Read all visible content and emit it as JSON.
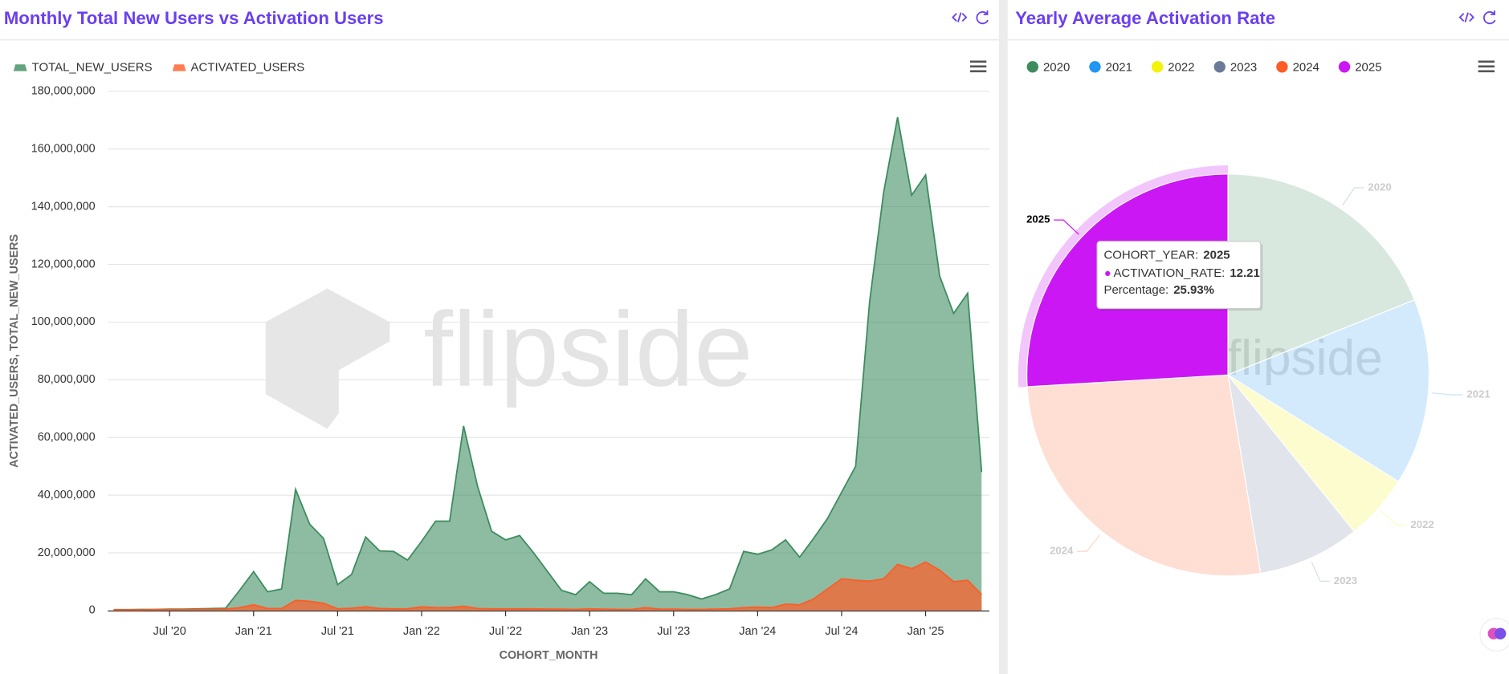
{
  "watermark": "flipside",
  "chart_data": [
    {
      "type": "area",
      "title": "Monthly Total New Users vs Activation Users",
      "xlabel": "COHORT_MONTH",
      "ylabel": "ACTIVATED_USERS, TOTAL_NEW_USERS",
      "legend": "top-left",
      "grid": true,
      "x": [
        "2020-03",
        "2020-04",
        "2020-05",
        "2020-06",
        "2020-07",
        "2020-08",
        "2020-09",
        "2020-10",
        "2020-11",
        "2020-12",
        "2021-01",
        "2021-02",
        "2021-03",
        "2021-04",
        "2021-05",
        "2021-06",
        "2021-07",
        "2021-08",
        "2021-09",
        "2021-10",
        "2021-11",
        "2021-12",
        "2022-01",
        "2022-02",
        "2022-03",
        "2022-04",
        "2022-05",
        "2022-06",
        "2022-07",
        "2022-08",
        "2022-09",
        "2022-10",
        "2022-11",
        "2022-12",
        "2023-01",
        "2023-02",
        "2023-03",
        "2023-04",
        "2023-05",
        "2023-06",
        "2023-07",
        "2023-08",
        "2023-09",
        "2023-10",
        "2023-11",
        "2023-12",
        "2024-01",
        "2024-02",
        "2024-03",
        "2024-04",
        "2024-05",
        "2024-06",
        "2024-07",
        "2024-08",
        "2024-09",
        "2024-10",
        "2024-11",
        "2024-12",
        "2025-01",
        "2025-02",
        "2025-03",
        "2025-04",
        "2025-05"
      ],
      "xlim": [
        "2020-03",
        "2025-05"
      ],
      "xticks": [
        {
          "value": "2020-07",
          "label": "Jul '20"
        },
        {
          "value": "2021-01",
          "label": "Jan '21"
        },
        {
          "value": "2021-07",
          "label": "Jul '21"
        },
        {
          "value": "2022-01",
          "label": "Jan '22"
        },
        {
          "value": "2022-07",
          "label": "Jul '22"
        },
        {
          "value": "2023-01",
          "label": "Jan '23"
        },
        {
          "value": "2023-07",
          "label": "Jul '23"
        },
        {
          "value": "2024-01",
          "label": "Jan '24"
        },
        {
          "value": "2024-07",
          "label": "Jul '24"
        },
        {
          "value": "2025-01",
          "label": "Jan '25"
        }
      ],
      "ylim": [
        0,
        180000000
      ],
      "yticks": [
        0,
        {
          "value": 20000000,
          "label": "20,000,000"
        },
        {
          "value": 40000000,
          "label": "40,000,000"
        },
        {
          "value": 60000000,
          "label": "60,000,000"
        },
        {
          "value": 80000000,
          "label": "80,000,000"
        },
        {
          "value": 100000000,
          "label": "100,000,000"
        },
        {
          "value": 120000000,
          "label": "120,000,000"
        },
        {
          "value": 140000000,
          "label": "140,000,000"
        },
        {
          "value": 160000000,
          "label": "160,000,000"
        },
        {
          "value": 180000000,
          "label": "180,000,000"
        }
      ],
      "series": [
        {
          "name": "TOTAL_NEW_USERS",
          "color": "#3d8c5e",
          "values": [
            300000,
            300000,
            400000,
            400000,
            500000,
            500000,
            600000,
            700000,
            800000,
            7000000,
            13500000,
            6500000,
            7500000,
            42000000,
            30000000,
            25000000,
            9000000,
            12500000,
            25500000,
            20700000,
            20500000,
            17500000,
            24000000,
            31000000,
            31000000,
            64000000,
            43000000,
            27500000,
            24500000,
            26000000,
            20000000,
            13500000,
            7000000,
            5500000,
            10000000,
            6000000,
            6000000,
            5500000,
            11000000,
            6500000,
            6500000,
            5500000,
            4000000,
            5500000,
            7500000,
            20500000,
            19500000,
            21000000,
            24500000,
            18500000,
            25000000,
            32000000,
            41000000,
            50000000,
            107000000,
            145000000,
            171000000,
            144000000,
            151000000,
            116000000,
            103000000,
            110000000,
            48000000
          ]
        },
        {
          "name": "ACTIVATED_USERS",
          "color": "#ff5c26",
          "values": [
            200000,
            200000,
            200000,
            300000,
            300000,
            300000,
            400000,
            400000,
            500000,
            1000000,
            2000000,
            700000,
            700000,
            3500000,
            3200000,
            2500000,
            600000,
            800000,
            1300000,
            700000,
            600000,
            600000,
            1300000,
            1000000,
            1000000,
            1500000,
            700000,
            600000,
            600000,
            600000,
            600000,
            500000,
            500000,
            400000,
            600000,
            500000,
            400000,
            400000,
            1000000,
            500000,
            500000,
            400000,
            400000,
            500000,
            600000,
            1000000,
            1200000,
            1000000,
            2200000,
            2000000,
            4000000,
            7500000,
            11000000,
            10500000,
            10200000,
            11000000,
            16000000,
            14500000,
            16800000,
            14000000,
            10000000,
            10500000,
            5500000
          ]
        }
      ]
    },
    {
      "type": "pie",
      "title": "Yearly Average Activation Rate",
      "legend": "top-left",
      "categories": [
        "2020",
        "2021",
        "2022",
        "2023",
        "2024",
        "2025"
      ],
      "values": [
        8.9,
        7.06,
        2.5,
        3.86,
        12.55,
        12.21
      ],
      "colors": [
        "#3d8c5e",
        "#2196f3",
        "#f2f20a",
        "#6b7a99",
        "#ff5c26",
        "#cc17f5"
      ],
      "tooltip": {
        "year_label": "COHORT_YEAR:",
        "year": "2025",
        "rate_label": "ACTIVATION_RATE:",
        "rate": "12.21",
        "percentage_label": "Percentage:",
        "percentage": "25.93%"
      }
    }
  ]
}
